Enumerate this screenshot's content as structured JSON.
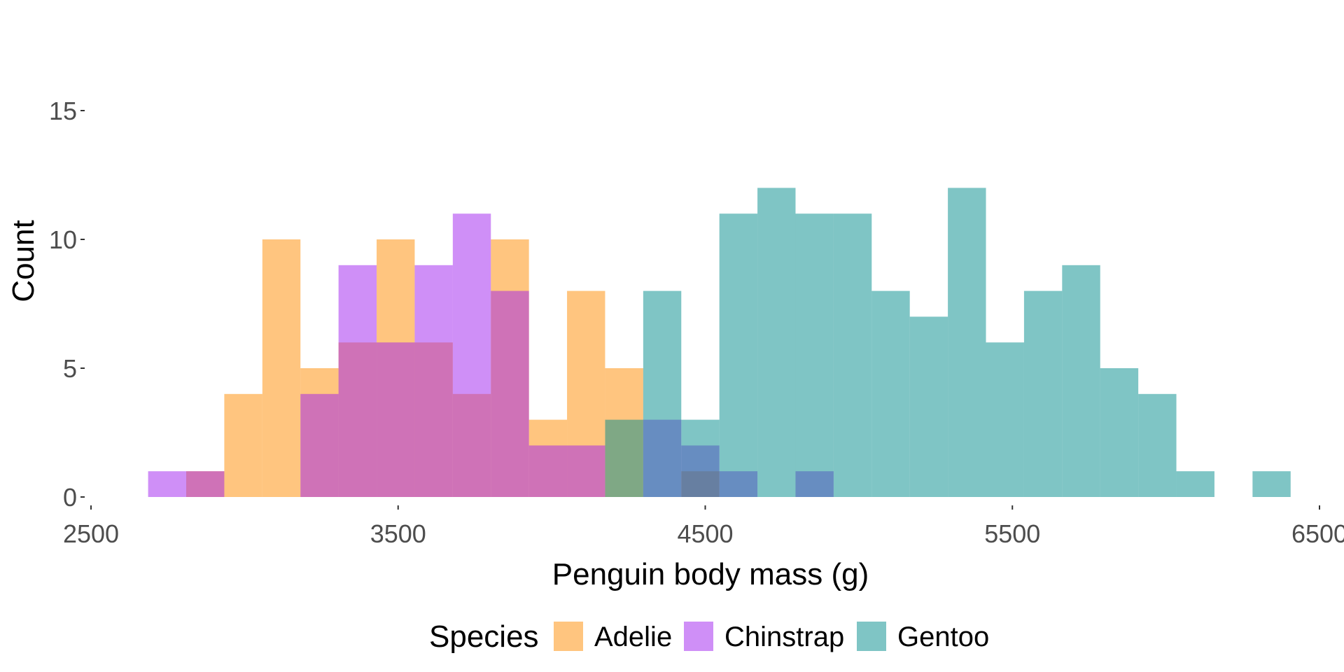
{
  "chart_data": {
    "type": "histogram",
    "xlabel": "Penguin body mass (g)",
    "ylabel": "Count",
    "xlim": [
      2500,
      6500
    ],
    "ylim": [
      0,
      18
    ],
    "x_ticks": [
      "2500",
      "3500",
      "4500",
      "5500",
      "6500"
    ],
    "y_ticks": [
      "0",
      "5",
      "10",
      "15"
    ],
    "grid": false,
    "legend_position": "bottom",
    "legend_title": "Species",
    "bin_width": 124,
    "bin_starts": [
      2686,
      2810,
      2934,
      3058,
      3182,
      3306,
      3430,
      3554,
      3678,
      3802,
      3926,
      4050,
      4174,
      4298,
      4422,
      4546,
      4670,
      4794,
      4918,
      5042,
      5166,
      5290,
      5414,
      5538,
      5662,
      5786,
      5910,
      6034,
      6158,
      6282
    ],
    "overlay_alpha": 0.5,
    "series": [
      {
        "name": "Adelie",
        "color": "#FF8C00",
        "values": [
          0,
          1,
          4,
          10,
          5,
          6,
          10,
          6,
          4,
          10,
          3,
          8,
          5,
          0,
          1,
          0,
          0,
          0,
          0,
          0,
          0,
          0,
          0,
          0,
          0,
          0,
          0,
          0,
          0,
          0
        ]
      },
      {
        "name": "Chinstrap",
        "color": "#A020F0",
        "values": [
          1,
          1,
          0,
          0,
          4,
          9,
          6,
          9,
          11,
          8,
          2,
          2,
          0,
          3,
          2,
          1,
          0,
          1,
          0,
          0,
          0,
          0,
          0,
          0,
          0,
          0,
          0,
          0,
          0,
          0
        ]
      },
      {
        "name": "Gentoo",
        "color": "#008B8B",
        "values": [
          0,
          0,
          0,
          0,
          0,
          0,
          0,
          0,
          0,
          0,
          0,
          0,
          3,
          8,
          3,
          11,
          12,
          11,
          11,
          8,
          7,
          12,
          6,
          8,
          9,
          5,
          4,
          1,
          0,
          1
        ]
      }
    ]
  }
}
